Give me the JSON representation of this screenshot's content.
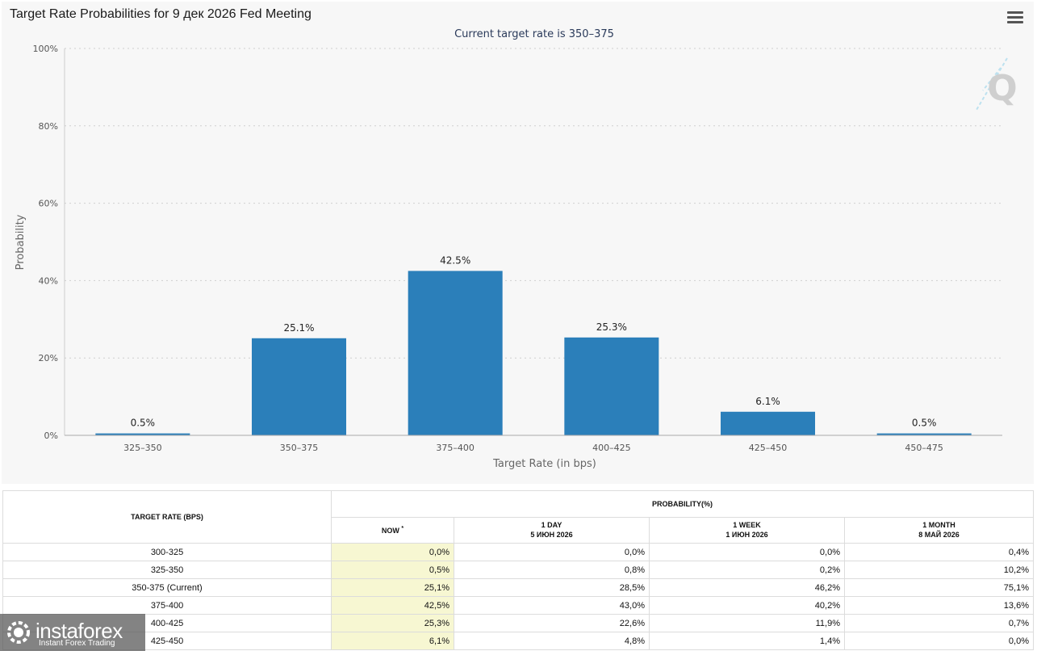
{
  "title": "Target Rate Probabilities for 9 дек 2026 Fed Meeting",
  "chart_data": {
    "type": "bar",
    "title": "Target Rate Probabilities for 9 дек 2026 Fed Meeting",
    "subtitle": "Current target rate is 350–375",
    "categories": [
      "325–350",
      "350–375",
      "375–400",
      "400–425",
      "425–450",
      "450–475"
    ],
    "values": [
      0.5,
      25.1,
      42.5,
      25.3,
      6.1,
      0.5
    ],
    "data_labels": [
      "0.5%",
      "25.1%",
      "42.5%",
      "25.3%",
      "6.1%",
      "0.5%"
    ],
    "xlabel": "Target Rate (in bps)",
    "ylabel": "Probability",
    "ylim": [
      0,
      100
    ],
    "yticks": [
      0,
      20,
      40,
      60,
      80,
      100
    ],
    "ytick_labels": [
      "0%",
      "20%",
      "40%",
      "60%",
      "80%",
      "100%"
    ],
    "grid": true,
    "bar_color": "#2b7fba"
  },
  "watermark_logo": "Q",
  "table": {
    "target_header": "TARGET RATE (BPS)",
    "prob_header": "PROBABILITY(%)",
    "now_label": "NOW",
    "now_mark": "*",
    "columns": [
      {
        "line1": "1 DAY",
        "line2": "5 ИЮН 2026"
      },
      {
        "line1": "1 WEEK",
        "line2": "1 ИЮН 2026"
      },
      {
        "line1": "1 MONTH",
        "line2": "8 МАЙ 2026"
      }
    ],
    "rows": [
      {
        "rate": "300-325",
        "now": "0,0%",
        "day": "0,0%",
        "week": "0,0%",
        "month": "0,4%"
      },
      {
        "rate": "325-350",
        "now": "0,5%",
        "day": "0,8%",
        "week": "0,2%",
        "month": "10,2%"
      },
      {
        "rate": "350-375 (Current)",
        "now": "25,1%",
        "day": "28,5%",
        "week": "46,2%",
        "month": "75,1%"
      },
      {
        "rate": "375-400",
        "now": "42,5%",
        "day": "43,0%",
        "week": "40,2%",
        "month": "13,6%"
      },
      {
        "rate": "400-425",
        "now": "25,3%",
        "day": "22,6%",
        "week": "11,9%",
        "month": "0,7%"
      },
      {
        "rate": "425-450",
        "now": "6,1%",
        "day": "4,8%",
        "week": "1,4%",
        "month": "0,0%"
      }
    ]
  },
  "brand": {
    "name": "instaforex",
    "tagline": "Instant Forex Trading"
  }
}
